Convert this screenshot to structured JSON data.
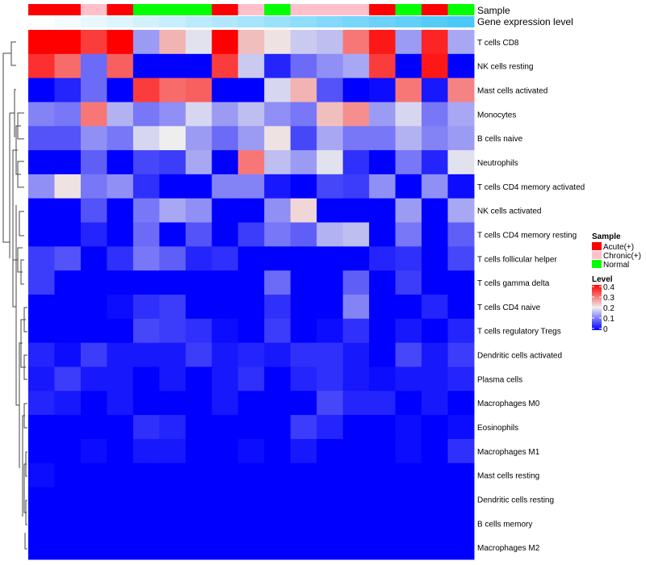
{
  "chart_data": {
    "type": "heatmap",
    "annotation_rows": [
      "Sample",
      "Gene expression level"
    ],
    "samples": [
      "Acute(+)",
      "Acute(+)",
      "Chronic(+)",
      "Acute(+)",
      "Normal",
      "Normal",
      "Normal",
      "Acute(+)",
      "Chronic(+)",
      "Normal",
      "Chronic(+)",
      "Chronic(+)",
      "Chronic(+)",
      "Acute(+)",
      "Normal",
      "Acute(+)",
      "Normal"
    ],
    "gene_expression_rank": [
      1,
      2,
      3,
      4,
      5,
      6,
      7,
      8,
      9,
      10,
      11,
      12,
      13,
      14,
      15,
      16,
      17
    ],
    "rows": [
      "T cells CD8",
      "NK cells resting",
      "Mast cells activated",
      "Monocytes",
      "B cells naive",
      "Neutrophils",
      "T cells CD4 memory activated",
      "NK cells activated",
      "T cells CD4 memory resting",
      "T cells follicular helper",
      "T cells gamma delta",
      "T cells CD4 naive",
      "T cells regulatory  Tregs",
      "Dendritic cells activated",
      "Plasma cells",
      "Macrophages M0",
      "Eosinophils",
      "Macrophages M1",
      "Mast cells resting",
      "Dendritic cells resting",
      "B cells memory",
      "Macrophages M2"
    ],
    "values": [
      [
        0.4,
        0.4,
        0.35,
        0.4,
        0.13,
        0.25,
        0.19,
        0.4,
        0.24,
        0.21,
        0.17,
        0.16,
        0.3,
        0.38,
        0.13,
        0.37,
        0.14
      ],
      [
        0.36,
        0.31,
        0.09,
        0.32,
        0,
        0,
        0,
        0.35,
        0.17,
        0.03,
        0.09,
        0.12,
        0.14,
        0.35,
        0,
        0.38,
        0
      ],
      [
        0,
        0.03,
        0.09,
        0,
        0.35,
        0.31,
        0.32,
        0,
        0,
        0.18,
        0.25,
        0.07,
        0,
        0.01,
        0.3,
        0.02,
        0.29
      ],
      [
        0.11,
        0.1,
        0.3,
        0.15,
        0.1,
        0.12,
        0.18,
        0.13,
        0.16,
        0.12,
        0.1,
        0.24,
        0.28,
        0.13,
        0.18,
        0.1,
        0.14
      ],
      [
        0.07,
        0.07,
        0.12,
        0.1,
        0.18,
        0.2,
        0.13,
        0.09,
        0.13,
        0.21,
        0.06,
        0.14,
        0.1,
        0.1,
        0.15,
        0.11,
        0.13
      ],
      [
        0,
        0,
        0.08,
        0,
        0.06,
        0.05,
        0.14,
        0,
        0.3,
        0.16,
        0.13,
        0.19,
        0.04,
        0,
        0.1,
        0.03,
        0.19
      ],
      [
        0.12,
        0.21,
        0.1,
        0.12,
        0.04,
        0,
        0,
        0.11,
        0.11,
        0.02,
        0,
        0.06,
        0.05,
        0.12,
        0,
        0.12,
        0.01
      ],
      [
        0,
        0,
        0.07,
        0,
        0.1,
        0.14,
        0.12,
        0,
        0,
        0.12,
        0.22,
        0,
        0,
        0,
        0.13,
        0,
        0.14
      ],
      [
        0,
        0,
        0.03,
        0,
        0.09,
        0,
        0.07,
        0,
        0.05,
        0.1,
        0.08,
        0.15,
        0.16,
        0,
        0.1,
        0,
        0.08
      ],
      [
        0.05,
        0.07,
        0,
        0.04,
        0.1,
        0.08,
        0.03,
        0.04,
        0,
        0,
        0,
        0,
        0,
        0.03,
        0.04,
        0,
        0.06
      ],
      [
        0.05,
        0,
        0,
        0,
        0,
        0,
        0,
        0,
        0,
        0.09,
        0,
        0,
        0.08,
        0,
        0.05,
        0,
        0
      ],
      [
        0,
        0,
        0,
        0.01,
        0.04,
        0.05,
        0,
        0,
        0,
        0.04,
        0,
        0,
        0.11,
        0,
        0,
        0.03,
        0
      ],
      [
        0,
        0,
        0,
        0,
        0.06,
        0.05,
        0.04,
        0.01,
        0,
        0.05,
        0,
        0.01,
        0.04,
        0,
        0.02,
        0,
        0.03
      ],
      [
        0.03,
        0.01,
        0.05,
        0.02,
        0.02,
        0.02,
        0.05,
        0.02,
        0.03,
        0.02,
        0.04,
        0.04,
        0.02,
        0,
        0.06,
        0.02,
        0.05
      ],
      [
        0.02,
        0.05,
        0.02,
        0.02,
        0,
        0.02,
        0,
        0.02,
        0.04,
        0,
        0.03,
        0.04,
        0.02,
        0.01,
        0.02,
        0.02,
        0.03
      ],
      [
        0.03,
        0.02,
        0,
        0.02,
        0,
        0,
        0,
        0.02,
        0,
        0,
        0,
        0.06,
        0.03,
        0.03,
        0,
        0.02,
        0
      ],
      [
        0,
        0,
        0,
        0,
        0.04,
        0.03,
        0,
        0,
        0,
        0,
        0.05,
        0.03,
        0,
        0,
        0.01,
        0,
        0.01
      ],
      [
        0,
        0,
        0.01,
        0,
        0.02,
        0.02,
        0,
        0,
        0.01,
        0,
        0.02,
        0,
        0,
        0,
        0.01,
        0,
        0.04
      ],
      [
        0.01,
        0,
        0,
        0,
        0,
        0,
        0,
        0,
        0,
        0,
        0,
        0,
        0,
        0,
        0,
        0,
        0
      ],
      [
        0,
        0,
        0,
        0,
        0,
        0,
        0,
        0,
        0,
        0,
        0,
        0,
        0,
        0,
        0,
        0,
        0
      ],
      [
        0,
        0,
        0,
        0,
        0,
        0,
        0,
        0,
        0,
        0,
        0,
        0,
        0,
        0,
        0,
        0,
        0
      ],
      [
        0,
        0,
        0,
        0,
        0,
        0,
        0,
        0,
        0,
        0,
        0,
        0,
        0,
        0,
        0,
        0,
        0
      ]
    ],
    "color_range": [
      0,
      0.4
    ],
    "colors": {
      "low": "#0000FF",
      "mid": "#EEEEEE",
      "high": "#FF0000",
      "expr_low": "#FFFFFF",
      "expr_high": "#4AC8F8"
    },
    "legend": {
      "sample_title": "Sample",
      "sample_items": [
        {
          "label": "Acute(+)",
          "color": "#FF0000"
        },
        {
          "label": "Chronic(+)",
          "color": "#FFC0CB"
        },
        {
          "label": "Normal",
          "color": "#00FF00"
        }
      ],
      "level_title": "Level",
      "level_ticks": [
        "0.4",
        "0.3",
        "0.2",
        "0.1",
        "0"
      ]
    }
  }
}
